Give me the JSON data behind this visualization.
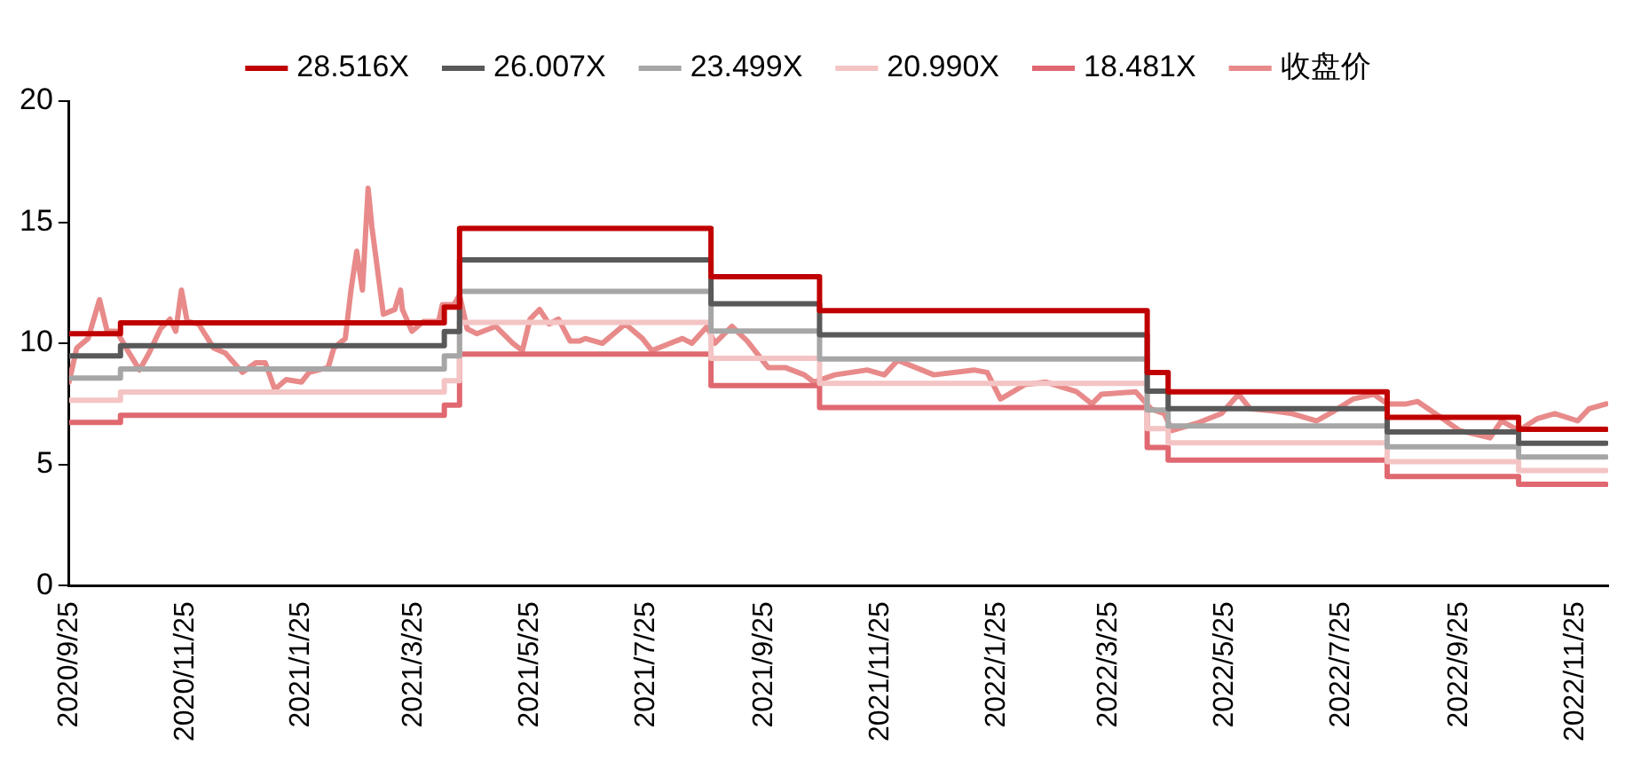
{
  "chart_data": {
    "type": "line",
    "legend": "top",
    "grid": false,
    "marker": "none",
    "xlim": [
      "2020-09-25",
      "2022-12-12"
    ],
    "ylim": [
      0,
      20
    ],
    "yticks": [
      0,
      5,
      10,
      15,
      20
    ],
    "xticks": [
      {
        "value": "2020-09-25",
        "label": "2020/9/25"
      },
      {
        "value": "2020-11-25",
        "label": "2020/11/25"
      },
      {
        "value": "2021-01-25",
        "label": "2021/1/25"
      },
      {
        "value": "2021-03-25",
        "label": "2021/3/25"
      },
      {
        "value": "2021-05-25",
        "label": "2021/5/25"
      },
      {
        "value": "2021-07-25",
        "label": "2021/7/25"
      },
      {
        "value": "2021-09-25",
        "label": "2021/9/25"
      },
      {
        "value": "2021-11-25",
        "label": "2021/11/25"
      },
      {
        "value": "2022-01-25",
        "label": "2022/1/25"
      },
      {
        "value": "2022-03-25",
        "label": "2022/3/25"
      },
      {
        "value": "2022-05-25",
        "label": "2022/5/25"
      },
      {
        "value": "2022-07-25",
        "label": "2022/7/25"
      },
      {
        "value": "2022-09-25",
        "label": "2022/9/25"
      },
      {
        "value": "2022-11-25",
        "label": "2022/11/25"
      }
    ],
    "series": [
      {
        "name": "28.516X",
        "type": "step",
        "color": "#c00000",
        "x": [
          "2020-09-25",
          "2020-10-22",
          "2021-04-10",
          "2021-04-18",
          "2021-08-28",
          "2021-10-24",
          "2022-04-14",
          "2022-04-25",
          "2022-08-18",
          "2022-10-26",
          "2022-12-11"
        ],
        "values": [
          10.4,
          10.85,
          11.5,
          14.75,
          12.75,
          11.35,
          8.8,
          8.0,
          6.95,
          6.45,
          6.45
        ]
      },
      {
        "name": "26.007X",
        "type": "step",
        "color": "#595959",
        "x": [
          "2020-09-25",
          "2020-10-22",
          "2021-04-10",
          "2021-04-18",
          "2021-08-28",
          "2021-10-24",
          "2022-04-14",
          "2022-04-25",
          "2022-08-18",
          "2022-10-26",
          "2022-12-11"
        ],
        "values": [
          9.48,
          9.9,
          10.49,
          13.45,
          11.63,
          10.35,
          8.03,
          7.3,
          6.34,
          5.88,
          5.88
        ]
      },
      {
        "name": "23.499X",
        "type": "step",
        "color": "#a6a6a6",
        "x": [
          "2020-09-25",
          "2020-10-22",
          "2021-04-10",
          "2021-04-18",
          "2021-08-28",
          "2021-10-24",
          "2022-04-14",
          "2022-04-25",
          "2022-08-18",
          "2022-10-26",
          "2022-12-11"
        ],
        "values": [
          8.57,
          8.94,
          9.48,
          12.15,
          10.51,
          9.35,
          7.25,
          6.59,
          5.73,
          5.31,
          5.31
        ]
      },
      {
        "name": "20.990X",
        "type": "step",
        "color": "#f4c4c4",
        "x": [
          "2020-09-25",
          "2020-10-22",
          "2021-04-10",
          "2021-04-18",
          "2021-08-28",
          "2021-10-24",
          "2022-04-14",
          "2022-04-25",
          "2022-08-18",
          "2022-10-26",
          "2022-12-11"
        ],
        "values": [
          7.65,
          7.99,
          8.46,
          10.86,
          9.38,
          8.35,
          6.48,
          5.89,
          5.12,
          4.75,
          4.75
        ]
      },
      {
        "name": "18.481X",
        "type": "step",
        "color": "#e06870",
        "x": [
          "2020-09-25",
          "2020-10-22",
          "2021-04-10",
          "2021-04-18",
          "2021-08-28",
          "2021-10-24",
          "2022-04-14",
          "2022-04-25",
          "2022-08-18",
          "2022-10-26",
          "2022-12-11"
        ],
        "values": [
          6.74,
          7.03,
          7.45,
          9.56,
          8.26,
          7.35,
          5.7,
          5.18,
          4.5,
          4.18,
          4.18
        ]
      },
      {
        "name": "收盘价",
        "type": "line",
        "color": "#e88a8a",
        "x": [
          "2020-09-25",
          "2020-09-29",
          "2020-10-05",
          "2020-10-11",
          "2020-10-15",
          "2020-10-20",
          "2020-10-25",
          "2020-11-01",
          "2020-11-06",
          "2020-11-12",
          "2020-11-17",
          "2020-11-20",
          "2020-11-23",
          "2020-11-26",
          "2020-12-02",
          "2020-12-10",
          "2020-12-16",
          "2020-12-25",
          "2021-01-01",
          "2021-01-06",
          "2021-01-11",
          "2021-01-17",
          "2021-01-25",
          "2021-01-29",
          "2021-02-03",
          "2021-02-08",
          "2021-02-11",
          "2021-02-17",
          "2021-02-20",
          "2021-02-23",
          "2021-02-26",
          "2021-03-01",
          "2021-03-03",
          "2021-03-06",
          "2021-03-09",
          "2021-03-15",
          "2021-03-18",
          "2021-03-19",
          "2021-03-24",
          "2021-03-30",
          "2021-04-07",
          "2021-04-09",
          "2021-04-15",
          "2021-04-18",
          "2021-04-22",
          "2021-04-27",
          "2021-05-07",
          "2021-05-16",
          "2021-05-21",
          "2021-05-25",
          "2021-05-30",
          "2021-06-04",
          "2021-06-09",
          "2021-06-15",
          "2021-06-20",
          "2021-06-23",
          "2021-07-02",
          "2021-07-14",
          "2021-07-23",
          "2021-07-28",
          "2021-08-13",
          "2021-08-18",
          "2021-08-26",
          "2021-08-30",
          "2021-09-08",
          "2021-09-16",
          "2021-09-27",
          "2021-10-06",
          "2021-10-16",
          "2021-10-21",
          "2021-11-01",
          "2021-11-18",
          "2021-11-27",
          "2021-12-04",
          "2021-12-23",
          "2022-01-13",
          "2022-01-20",
          "2022-01-27",
          "2022-02-09",
          "2022-02-20",
          "2022-03-08",
          "2022-03-16",
          "2022-03-21",
          "2022-04-08",
          "2022-04-16",
          "2022-04-23",
          "2022-04-27",
          "2022-05-10",
          "2022-05-23",
          "2022-06-01",
          "2022-06-07",
          "2022-06-20",
          "2022-06-29",
          "2022-07-12",
          "2022-07-21",
          "2022-07-31",
          "2022-08-11",
          "2022-08-18",
          "2022-08-28",
          "2022-09-03",
          "2022-09-16",
          "2022-09-25",
          "2022-10-11",
          "2022-10-17",
          "2022-10-26",
          "2022-11-05",
          "2022-11-14",
          "2022-11-26",
          "2022-12-02",
          "2022-12-11"
        ],
        "values": [
          8.4,
          9.8,
          10.2,
          11.8,
          10.5,
          10.5,
          9.8,
          8.9,
          9.6,
          10.6,
          11.0,
          10.5,
          12.2,
          10.9,
          10.8,
          9.8,
          9.6,
          8.8,
          9.2,
          9.2,
          8.1,
          8.5,
          8.4,
          8.8,
          8.9,
          9.0,
          9.8,
          10.2,
          12.2,
          13.8,
          12.2,
          16.4,
          14.8,
          13.0,
          11.2,
          11.4,
          12.2,
          11.4,
          10.5,
          10.9,
          10.9,
          11.6,
          11.6,
          12.0,
          10.6,
          10.4,
          10.7,
          10.0,
          9.7,
          11.0,
          11.4,
          10.8,
          11.0,
          10.1,
          10.1,
          10.2,
          10.0,
          10.8,
          10.2,
          9.7,
          10.2,
          10.0,
          10.7,
          10.0,
          10.7,
          10.1,
          9.0,
          9.0,
          8.7,
          8.4,
          8.7,
          8.9,
          8.7,
          9.3,
          8.7,
          8.9,
          8.8,
          7.7,
          8.3,
          8.4,
          8.0,
          7.5,
          7.9,
          8.0,
          7.3,
          7.1,
          6.4,
          6.7,
          7.1,
          7.9,
          7.3,
          7.2,
          7.1,
          6.8,
          7.2,
          7.7,
          7.9,
          7.5,
          7.5,
          7.6,
          6.9,
          6.4,
          6.1,
          6.8,
          6.4,
          6.9,
          7.1,
          6.8,
          7.3,
          7.5
        ]
      }
    ]
  }
}
